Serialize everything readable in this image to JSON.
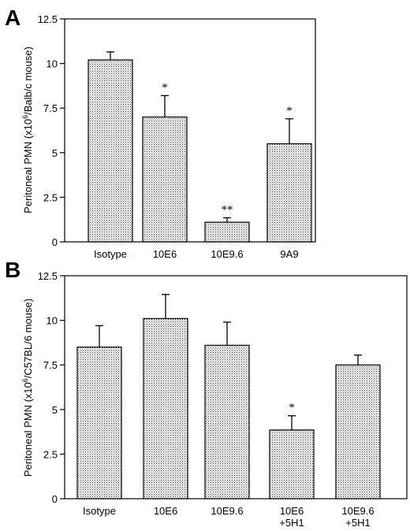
{
  "chart_data": [
    {
      "type": "bar",
      "panel": "A",
      "ylabel_pre": "Peritoneal PMN (x10",
      "ylabel_sup": "6",
      "ylabel_post": "/Balb/c mouse)",
      "ylim": [
        0,
        12.5
      ],
      "yticks": [
        "0",
        "2.5",
        "5",
        "7.5",
        "10",
        "12.5"
      ],
      "categories": [
        [
          "Isotype"
        ],
        [
          "10E6"
        ],
        [
          "10E9.6"
        ],
        [
          "9A9"
        ]
      ],
      "values": [
        10.2,
        7.0,
        1.1,
        5.5
      ],
      "errors": [
        0.45,
        1.2,
        0.25,
        1.4
      ],
      "significance": [
        "",
        "*",
        "**",
        "*"
      ]
    },
    {
      "type": "bar",
      "panel": "B",
      "ylabel_pre": "Peritoneal PMN (x10",
      "ylabel_sup": "6",
      "ylabel_post": "/C57BL/6 mouse)",
      "ylim": [
        0,
        12.5
      ],
      "yticks": [
        "0",
        "2.5",
        "5",
        "7.5",
        "10",
        "12.5"
      ],
      "categories": [
        [
          "Isotype"
        ],
        [
          "10E6"
        ],
        [
          "10E9.6"
        ],
        [
          "10E6",
          "+5H1"
        ],
        [
          "10E9.6",
          "+5H1"
        ]
      ],
      "values": [
        8.5,
        10.1,
        8.6,
        3.85,
        7.5
      ],
      "errors": [
        1.2,
        1.35,
        1.3,
        0.8,
        0.55
      ],
      "significance": [
        "",
        "",
        "",
        "*",
        ""
      ]
    }
  ]
}
